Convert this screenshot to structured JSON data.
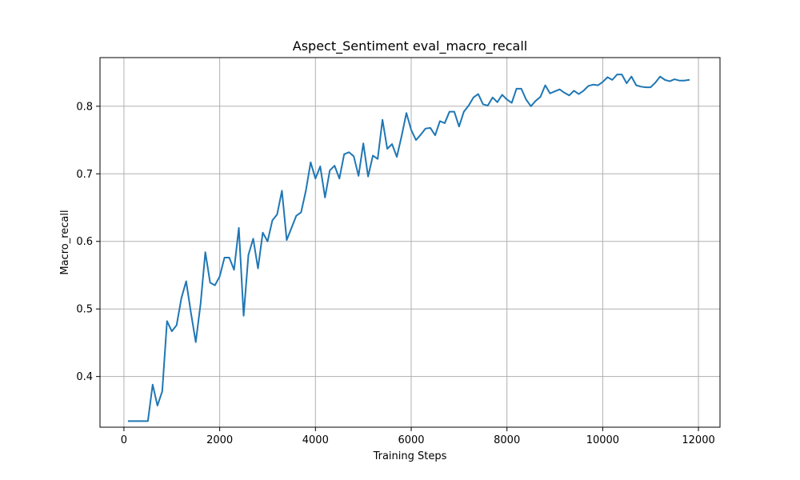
{
  "chart_data": {
    "type": "line",
    "title": "Aspect_Sentiment eval_macro_recall",
    "xlabel": "Training Steps",
    "ylabel": "Macro_recall",
    "xlim": [
      -500,
      12450
    ],
    "ylim": [
      0.325,
      0.872
    ],
    "x_ticks": [
      0,
      2000,
      4000,
      6000,
      8000,
      10000,
      12000
    ],
    "x_tick_labels": [
      "0",
      "2000",
      "4000",
      "6000",
      "8000",
      "10000",
      "12000"
    ],
    "y_ticks": [
      0.4,
      0.5,
      0.6,
      0.7,
      0.8
    ],
    "y_tick_labels": [
      "0.4",
      "0.5",
      "0.6",
      "0.7",
      "0.8"
    ],
    "grid": true,
    "series": [
      {
        "color": "#1f77b4",
        "x": [
          100,
          200,
          300,
          400,
          500,
          600,
          700,
          800,
          900,
          1000,
          1100,
          1200,
          1300,
          1400,
          1500,
          1600,
          1700,
          1800,
          1900,
          2000,
          2100,
          2200,
          2300,
          2400,
          2500,
          2600,
          2700,
          2800,
          2900,
          3000,
          3100,
          3200,
          3300,
          3400,
          3500,
          3600,
          3700,
          3800,
          3900,
          4000,
          4100,
          4200,
          4300,
          4400,
          4500,
          4600,
          4700,
          4800,
          4900,
          5000,
          5100,
          5200,
          5300,
          5400,
          5500,
          5600,
          5700,
          5800,
          5900,
          6000,
          6100,
          6200,
          6300,
          6400,
          6500,
          6600,
          6700,
          6800,
          6900,
          7000,
          7100,
          7200,
          7300,
          7400,
          7500,
          7600,
          7700,
          7800,
          7900,
          8000,
          8100,
          8200,
          8300,
          8400,
          8500,
          8600,
          8700,
          8800,
          8900,
          9000,
          9100,
          9200,
          9300,
          9400,
          9500,
          9600,
          9700,
          9800,
          9900,
          10000,
          10100,
          10200,
          10300,
          10400,
          10500,
          10600,
          10700,
          10800,
          10900,
          11000,
          11100,
          11200,
          11300,
          11400,
          11500,
          11600,
          11700,
          11800
        ],
        "values": [
          0.334,
          0.334,
          0.334,
          0.334,
          0.334,
          0.388,
          0.357,
          0.378,
          0.482,
          0.467,
          0.476,
          0.516,
          0.541,
          0.494,
          0.451,
          0.507,
          0.584,
          0.539,
          0.535,
          0.548,
          0.576,
          0.576,
          0.558,
          0.62,
          0.49,
          0.58,
          0.604,
          0.56,
          0.613,
          0.6,
          0.631,
          0.64,
          0.675,
          0.602,
          0.62,
          0.638,
          0.643,
          0.675,
          0.717,
          0.693,
          0.711,
          0.665,
          0.705,
          0.712,
          0.693,
          0.729,
          0.732,
          0.726,
          0.697,
          0.745,
          0.696,
          0.727,
          0.722,
          0.78,
          0.737,
          0.744,
          0.725,
          0.756,
          0.79,
          0.765,
          0.75,
          0.758,
          0.767,
          0.768,
          0.757,
          0.778,
          0.775,
          0.792,
          0.792,
          0.77,
          0.792,
          0.801,
          0.813,
          0.818,
          0.803,
          0.801,
          0.813,
          0.806,
          0.817,
          0.81,
          0.805,
          0.826,
          0.826,
          0.81,
          0.8,
          0.808,
          0.814,
          0.831,
          0.819,
          0.822,
          0.825,
          0.82,
          0.816,
          0.823,
          0.818,
          0.823,
          0.83,
          0.832,
          0.831,
          0.836,
          0.843,
          0.839,
          0.847,
          0.847,
          0.834,
          0.844,
          0.831,
          0.829,
          0.828,
          0.828,
          0.835,
          0.844,
          0.839,
          0.837,
          0.84,
          0.838,
          0.838,
          0.839
        ]
      }
    ]
  }
}
